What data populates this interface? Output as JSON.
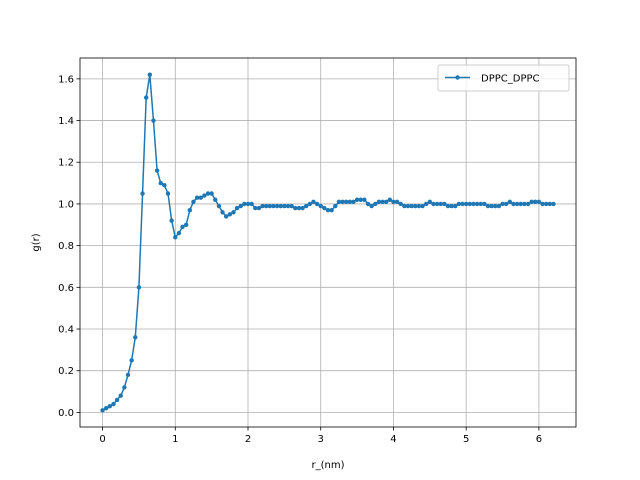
{
  "chart_data": {
    "type": "line",
    "title": "",
    "xlabel": "r_(nm)",
    "ylabel": "g(r)",
    "xlim": [
      -0.31,
      6.51
    ],
    "ylim": [
      -0.07,
      1.7
    ],
    "xticks": [
      0,
      1,
      2,
      3,
      4,
      5,
      6
    ],
    "yticks": [
      0.0,
      0.2,
      0.4,
      0.6,
      0.8,
      1.0,
      1.2,
      1.4,
      1.6
    ],
    "xtick_labels": [
      "0",
      "1",
      "2",
      "3",
      "4",
      "5",
      "6"
    ],
    "ytick_labels": [
      "0.0",
      "0.2",
      "0.4",
      "0.6",
      "0.8",
      "1.0",
      "1.2",
      "1.4",
      "1.6"
    ],
    "grid": true,
    "legend_position": "top-right",
    "color": "#1f77b4",
    "series": [
      {
        "name": "DPPC_DPPC",
        "marker": "circle",
        "x": [
          0.0,
          0.05,
          0.1,
          0.15,
          0.2,
          0.25,
          0.3,
          0.35,
          0.4,
          0.45,
          0.5,
          0.55,
          0.6,
          0.65,
          0.7,
          0.75,
          0.8,
          0.85,
          0.9,
          0.95,
          1.0,
          1.05,
          1.1,
          1.15,
          1.2,
          1.25,
          1.3,
          1.35,
          1.4,
          1.45,
          1.5,
          1.55,
          1.6,
          1.65,
          1.7,
          1.75,
          1.8,
          1.85,
          1.9,
          1.95,
          2.0,
          2.05,
          2.1,
          2.15,
          2.2,
          2.25,
          2.3,
          2.35,
          2.4,
          2.45,
          2.5,
          2.55,
          2.6,
          2.65,
          2.7,
          2.75,
          2.8,
          2.85,
          2.9,
          2.95,
          3.0,
          3.05,
          3.1,
          3.15,
          3.2,
          3.25,
          3.3,
          3.35,
          3.4,
          3.45,
          3.5,
          3.55,
          3.6,
          3.65,
          3.7,
          3.75,
          3.8,
          3.85,
          3.9,
          3.95,
          4.0,
          4.05,
          4.1,
          4.15,
          4.2,
          4.25,
          4.3,
          4.35,
          4.4,
          4.45,
          4.5,
          4.55,
          4.6,
          4.65,
          4.7,
          4.75,
          4.8,
          4.85,
          4.9,
          4.95,
          5.0,
          5.05,
          5.1,
          5.15,
          5.2,
          5.25,
          5.3,
          5.35,
          5.4,
          5.45,
          5.5,
          5.55,
          5.6,
          5.65,
          5.7,
          5.75,
          5.8,
          5.85,
          5.9,
          5.95,
          6.0,
          6.05,
          6.1,
          6.15,
          6.2
        ],
        "y": [
          0.01,
          0.02,
          0.03,
          0.04,
          0.06,
          0.08,
          0.12,
          0.18,
          0.25,
          0.36,
          0.6,
          1.05,
          1.51,
          1.62,
          1.4,
          1.16,
          1.1,
          1.09,
          1.05,
          0.92,
          0.84,
          0.86,
          0.89,
          0.9,
          0.97,
          1.01,
          1.03,
          1.03,
          1.04,
          1.05,
          1.05,
          1.02,
          0.99,
          0.96,
          0.94,
          0.95,
          0.96,
          0.98,
          0.99,
          1.0,
          1.0,
          1.0,
          0.98,
          0.98,
          0.99,
          0.99,
          0.99,
          0.99,
          0.99,
          0.99,
          0.99,
          0.99,
          0.99,
          0.98,
          0.98,
          0.98,
          0.99,
          1.0,
          1.01,
          1.0,
          0.99,
          0.98,
          0.97,
          0.97,
          0.99,
          1.01,
          1.01,
          1.01,
          1.01,
          1.01,
          1.02,
          1.02,
          1.02,
          1.0,
          0.99,
          1.0,
          1.01,
          1.01,
          1.01,
          1.02,
          1.01,
          1.01,
          1.0,
          0.99,
          0.99,
          0.99,
          0.99,
          0.99,
          0.99,
          1.0,
          1.01,
          1.0,
          1.0,
          1.0,
          1.0,
          0.99,
          0.99,
          0.99,
          1.0,
          1.0,
          1.0,
          1.0,
          1.0,
          1.0,
          1.0,
          1.0,
          0.99,
          0.99,
          0.99,
          0.99,
          1.0,
          1.0,
          1.01,
          1.0,
          1.0,
          1.0,
          1.0,
          1.0,
          1.01,
          1.01,
          1.01,
          1.0,
          1.0,
          1.0,
          1.0
        ]
      }
    ]
  }
}
